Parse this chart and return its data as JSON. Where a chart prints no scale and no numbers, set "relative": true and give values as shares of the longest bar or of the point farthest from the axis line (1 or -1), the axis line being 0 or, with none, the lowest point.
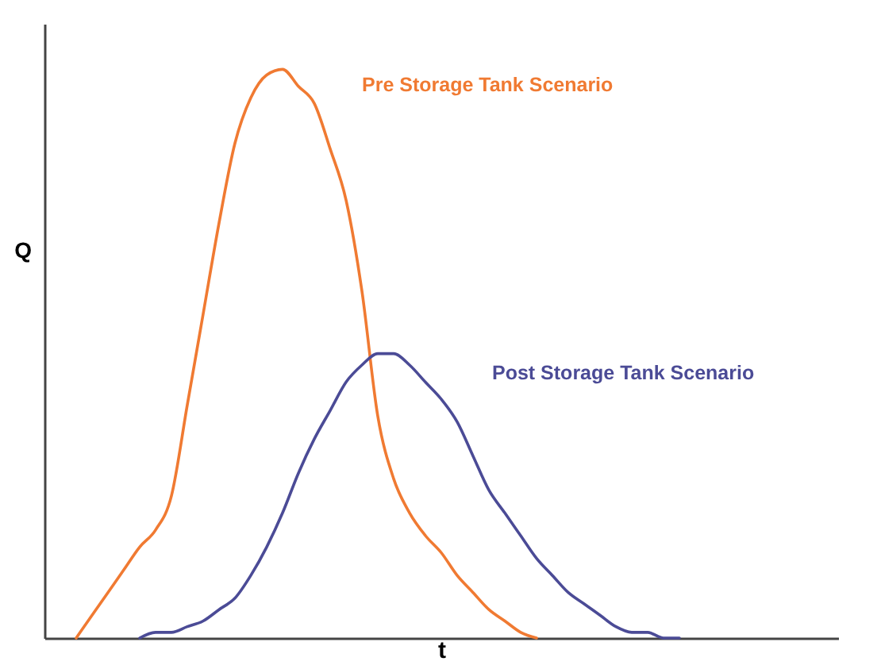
{
  "chart_data": {
    "type": "line",
    "relative": true,
    "xlabel": "t",
    "ylabel": "Q",
    "marker": "none",
    "line_style": "solid",
    "categories": [
      null,
      null,
      null,
      null,
      null,
      null,
      null,
      null,
      null,
      null,
      null,
      null,
      null,
      null,
      null,
      null,
      null,
      null,
      null,
      null,
      null,
      null,
      null,
      null,
      null,
      null,
      null,
      null,
      null,
      null,
      null,
      null,
      null,
      null,
      null,
      null,
      null,
      null,
      null,
      null,
      null,
      null,
      null,
      null,
      null,
      null,
      null,
      null,
      null,
      null,
      null
    ],
    "series": [
      {
        "name": "Pre Storage Tank  Scenario",
        "color": "#f07a32",
        "values": [
          null,
          null,
          0,
          0.04,
          0.08,
          0.12,
          0.16,
          0.19,
          0.25,
          0.41,
          0.57,
          0.73,
          0.87,
          0.95,
          0.99,
          1,
          0.97,
          0.94,
          0.86,
          0.77,
          0.61,
          0.39,
          0.28,
          0.22,
          0.18,
          0.15,
          0.11,
          0.08,
          0.05,
          0.03,
          0.01,
          0,
          null,
          null,
          null,
          null,
          null,
          null,
          null,
          null,
          null,
          null,
          null,
          null,
          null,
          null,
          null,
          null,
          null,
          null,
          null
        ]
      },
      {
        "name": "Post Storage Tank Scenario",
        "color": "#4b4b96",
        "values": [
          null,
          null,
          null,
          null,
          null,
          null,
          0,
          0.01,
          0.01,
          0.02,
          0.03,
          0.05,
          0.07,
          0.11,
          0.16,
          0.22,
          0.29,
          0.35,
          0.4,
          0.45,
          0.48,
          0.5,
          0.5,
          0.48,
          0.45,
          0.42,
          0.38,
          0.32,
          0.26,
          0.22,
          0.18,
          0.14,
          0.11,
          0.08,
          0.06,
          0.04,
          0.02,
          0.01,
          0.01,
          0,
          0,
          null,
          null,
          null,
          null,
          null,
          null,
          null,
          null,
          null,
          null
        ]
      }
    ]
  }
}
